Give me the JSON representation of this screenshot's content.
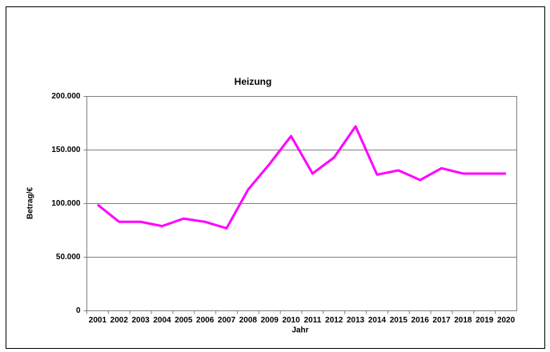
{
  "chart_data": {
    "type": "line",
    "title": "Heizung",
    "x_label": "Jahr",
    "y_label": "Betrag/€",
    "categories": [
      "2001",
      "2002",
      "2003",
      "2004",
      "2005",
      "2006",
      "2007",
      "2008",
      "2009",
      "2010",
      "2011",
      "2012",
      "2013",
      "2014",
      "2015",
      "2016",
      "2017",
      "2018",
      "2019",
      "2020"
    ],
    "values": [
      99000,
      83000,
      83000,
      79000,
      86000,
      83000,
      77000,
      113000,
      137000,
      163000,
      128000,
      143000,
      172000,
      127000,
      131000,
      122000,
      133000,
      128000,
      128000,
      128000
    ],
    "color": "#ff00ff",
    "ylim": [
      0,
      200000
    ],
    "yticks": [
      0,
      {
        "value": 50000,
        "label": "50.000"
      },
      {
        "value": 100000,
        "label": "100.000"
      },
      {
        "value": 150000,
        "label": "150.000"
      },
      {
        "value": 200000,
        "label": "200.000"
      }
    ],
    "grid": true
  }
}
